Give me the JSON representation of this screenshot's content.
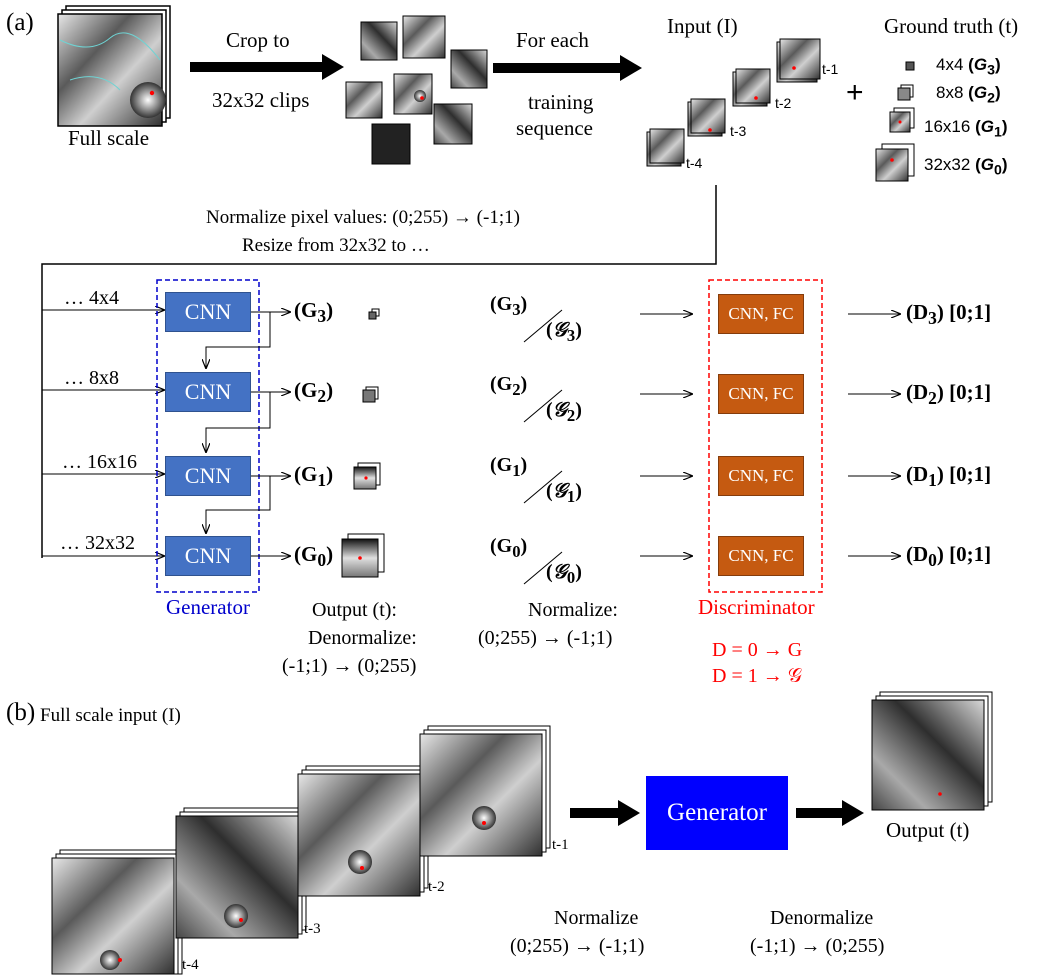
{
  "panel_a": {
    "label": "(a)",
    "full_scale": "Full scale",
    "crop_line1": "Crop to",
    "crop_line2": "32x32 clips",
    "for_each_line1": "For each",
    "for_each_line2": "training",
    "for_each_line3": "sequence",
    "input_title": "Input (I)",
    "gt_title": "Ground truth (t)",
    "input_labels": [
      "t-1",
      "t-2",
      "t-3",
      "t-4"
    ],
    "gt_items": [
      {
        "size": "4x4",
        "sym": "G",
        "sub": "3"
      },
      {
        "size": "8x8",
        "sym": "G",
        "sub": "2"
      },
      {
        "size": "16x16",
        "sym": "G",
        "sub": "1"
      },
      {
        "size": "32x32",
        "sym": "G",
        "sub": "0"
      }
    ],
    "plus": "+",
    "normalize_line1": "Normalize pixel values: (0;255) → (-1;1)",
    "normalize_line2": "Resize from 32x32 to …",
    "resize_labels": [
      "… 4x4",
      "… 8x8",
      "… 16x16",
      "… 32x32"
    ],
    "cnn_label": "CNN",
    "generator_outputs": [
      "(G3)",
      "(G2)",
      "(G1)",
      "(G0)"
    ],
    "generator_label": "Generator",
    "output_line1": "Output (t):",
    "output_line2": "Denormalize:",
    "output_line3": "(-1;1) → (0;255)",
    "pairs": [
      {
        "top": "(G3)",
        "bottom": "(𝒢3)"
      },
      {
        "top": "(G2)",
        "bottom": "(𝒢2)"
      },
      {
        "top": "(G1)",
        "bottom": "(𝒢1)"
      },
      {
        "top": "(G0)",
        "bottom": "(𝒢0)"
      }
    ],
    "normalize_mid_line1": "Normalize:",
    "normalize_mid_line2": "(0;255) → (-1;1)",
    "cnn_fc_label": "CNN, FC",
    "disc_outputs": [
      "(D3) [0;1]",
      "(D2) [0;1]",
      "(D1) [0;1]",
      "(D0) [0;1]"
    ],
    "discriminator_label": "Discriminator",
    "rule_line1": "D = 0 → G",
    "rule_line2": "D = 1 → 𝒢"
  },
  "panel_b": {
    "label": "(b)",
    "title": "Full scale input (I)",
    "input_labels": [
      "t-1",
      "t-2",
      "t-3",
      "t-4"
    ],
    "generator": "Generator",
    "output": "Output (t)",
    "normalize_line1": "Normalize",
    "normalize_line2": "(0;255) → (-1;1)",
    "denormalize_line1": "Denormalize",
    "denormalize_line2": "(-1;1) → (0;255)"
  },
  "colors": {
    "cnn": "#4472C4",
    "cnn_fc": "#C55A11",
    "generator_dashed": "#0000cc",
    "discriminator_dashed": "#ff0000",
    "generator_big": "#0000ff"
  }
}
